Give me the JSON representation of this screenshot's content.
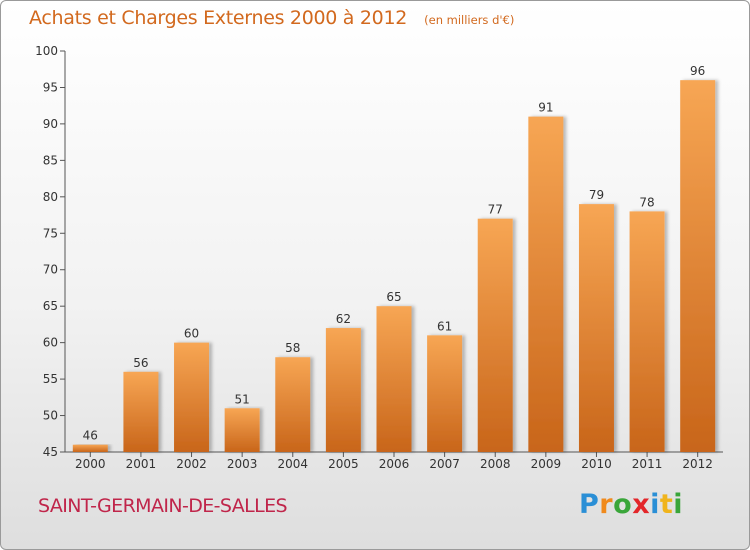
{
  "title": {
    "main": "Achats et Charges Externes 2000 à 2012",
    "unit": "(en milliers d'€)"
  },
  "commune": "SAINT-GERMAIN-DE-SALLES",
  "logo": {
    "text": "Proxiti",
    "letters": [
      "P",
      "r",
      "o",
      "x",
      "i",
      "t",
      "i"
    ],
    "colors": [
      "#2a8fd6",
      "#f08a1c",
      "#3aa63a",
      "#e3262a",
      "#2a8fd6",
      "#f0b41c",
      "#3aa63a"
    ]
  },
  "chart_data": {
    "type": "bar",
    "categories": [
      "2000",
      "2001",
      "2002",
      "2003",
      "2004",
      "2005",
      "2006",
      "2007",
      "2008",
      "2009",
      "2010",
      "2011",
      "2012"
    ],
    "values": [
      46,
      56,
      60,
      51,
      58,
      62,
      65,
      61,
      77,
      91,
      79,
      78,
      96
    ],
    "ylim": [
      45,
      100
    ],
    "yticks": [
      45,
      50,
      55,
      60,
      65,
      70,
      75,
      80,
      85,
      90,
      95,
      100
    ],
    "grid": false,
    "bar_color_top": "#f7a654",
    "bar_color_bottom": "#c8651a",
    "axis_color": "#555555"
  }
}
